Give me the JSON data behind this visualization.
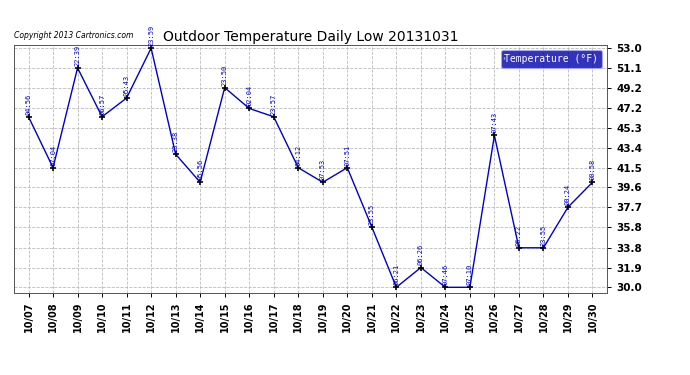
{
  "title": "Outdoor Temperature Daily Low 20131031",
  "copyright_text": "Copyright 2013 Cartronics.com",
  "legend_label": "Temperature (°F)",
  "dates": [
    "10/07",
    "10/08",
    "10/09",
    "10/10",
    "10/11",
    "10/12",
    "10/13",
    "10/14",
    "10/15",
    "10/16",
    "10/17",
    "10/18",
    "10/19",
    "10/20",
    "10/21",
    "10/22",
    "10/23",
    "10/24",
    "10/25",
    "10/26",
    "10/27",
    "10/28",
    "10/29",
    "10/30"
  ],
  "temperatures": [
    46.4,
    41.5,
    51.1,
    46.4,
    48.2,
    53.0,
    42.8,
    40.1,
    49.2,
    47.2,
    46.4,
    41.5,
    40.1,
    41.5,
    35.8,
    30.0,
    31.9,
    30.0,
    30.0,
    44.6,
    33.8,
    33.8,
    37.7,
    40.1
  ],
  "time_labels": [
    "04:56",
    "07:04",
    "22:39",
    "06:57",
    "05:43",
    "23:59",
    "23:38",
    "05:56",
    "23:50",
    "02:04",
    "23:57",
    "04:12",
    "07:53",
    "07:51",
    "23:55",
    "06:21",
    "06:26",
    "07:46",
    "07:10",
    "07:43",
    "06:22",
    "23:55",
    "00:24",
    "00:58"
  ],
  "ylim": [
    30.0,
    53.0
  ],
  "yticks": [
    30.0,
    31.9,
    33.8,
    35.8,
    37.7,
    39.6,
    41.5,
    43.4,
    45.3,
    47.2,
    49.2,
    51.1,
    53.0
  ],
  "line_color": "#0000cc",
  "marker_color": "#000000",
  "bg_color": "#ffffff",
  "grid_color": "#bbbbbb",
  "title_color": "#000000",
  "label_color": "#0000cc",
  "legend_bg": "#0000aa",
  "legend_fg": "#ffffff",
  "figwidth": 6.9,
  "figheight": 3.75,
  "dpi": 100
}
